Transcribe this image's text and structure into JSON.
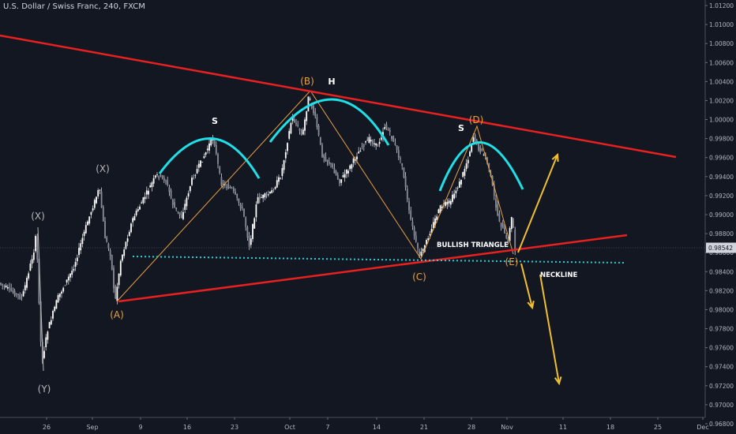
{
  "header": {
    "title": "U.S. Dollar / Swiss Franc, 240, FXCM"
  },
  "chart_data": {
    "type": "candlestick",
    "symbol": "U.S. Dollar / Swiss Franc",
    "interval": "240",
    "source": "FXCM",
    "current_price": "0.98542",
    "ylim": [
      0.9672,
      1.0128
    ],
    "y_ticks": [
      1.012,
      1.01,
      1.008,
      1.006,
      1.004,
      1.002,
      1.0,
      0.998,
      0.996,
      0.994,
      0.992,
      0.99,
      0.988,
      0.986,
      0.984,
      0.982,
      0.98,
      0.978,
      0.976,
      0.974,
      0.972,
      0.97,
      0.968
    ],
    "x_ticks": [
      "26",
      "Sep",
      "9",
      "16",
      "23",
      "Oct",
      "7",
      "14",
      "21",
      "28",
      "Nov",
      "11",
      "18",
      "25",
      "Dec"
    ],
    "colors": {
      "trendline": "#e82020",
      "arc": "#1ee0e6",
      "wave": "#e8a040",
      "projection": "#f0c030",
      "neckline": "#2ad0d8",
      "candle": "#d1d4dc",
      "price_label_bg": "#d1d4dc"
    },
    "wave_labels": [
      "(X)",
      "(Y)",
      "(X)",
      "(A)",
      "(B)",
      "(C)",
      "(D)",
      "(E)"
    ],
    "pattern_labels": [
      "S",
      "H",
      "S"
    ],
    "annotations": [
      "BULLISH TRIANGLE",
      "NECKLINE"
    ]
  }
}
